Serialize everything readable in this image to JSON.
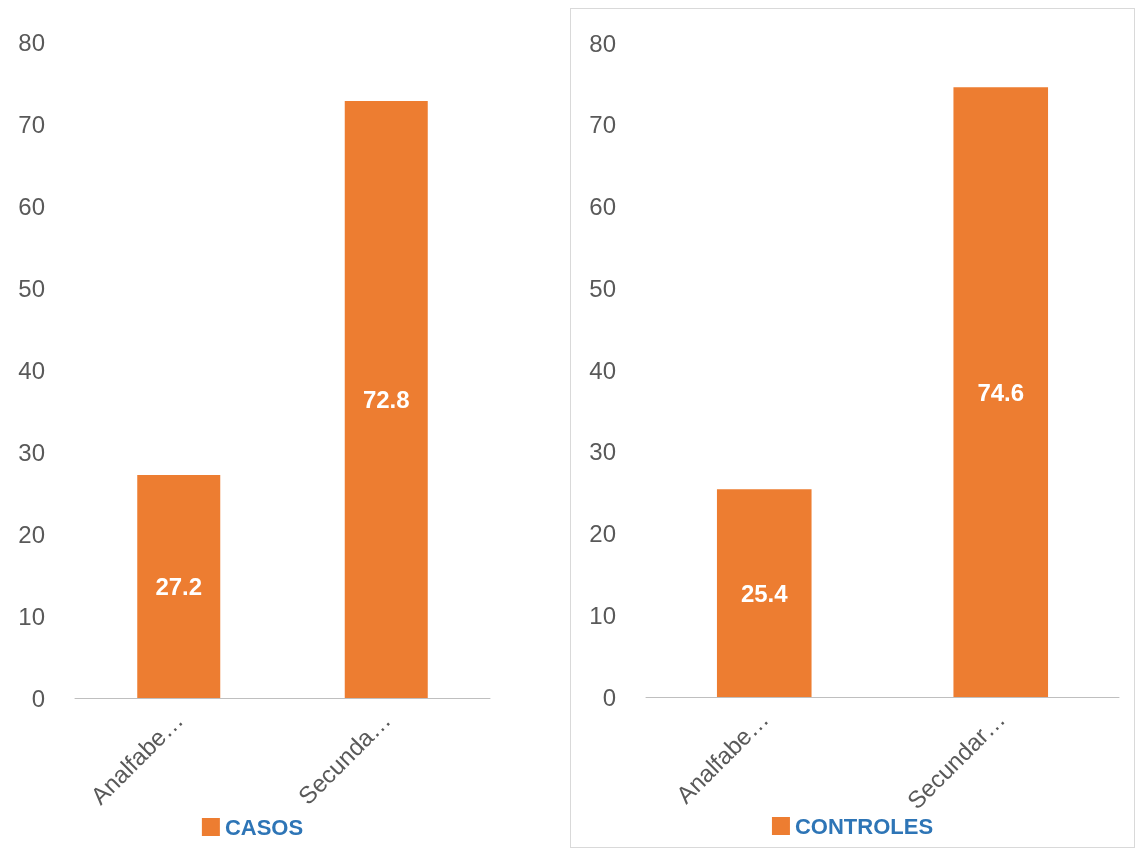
{
  "chart_data": [
    {
      "type": "bar",
      "categories": [
        "Analfabe…",
        "Secunda…"
      ],
      "series": [
        {
          "name": "CASOS",
          "color": "#ed7d31",
          "values": [
            27.2,
            72.8
          ]
        }
      ],
      "ylim": [
        0,
        80
      ],
      "yticks": [
        0,
        10,
        20,
        30,
        40,
        50,
        60,
        70,
        80
      ],
      "data_labels": true,
      "legend": "bottom",
      "grid": false
    },
    {
      "type": "bar",
      "categories": [
        "Analfabe…",
        "Secundar…"
      ],
      "series": [
        {
          "name": "CONTROLES",
          "color": "#ed7d31",
          "values": [
            25.4,
            74.6
          ]
        }
      ],
      "ylim": [
        0,
        80
      ],
      "yticks": [
        0,
        10,
        20,
        30,
        40,
        50,
        60,
        70,
        80
      ],
      "data_labels": true,
      "legend": "bottom",
      "grid": false
    }
  ]
}
